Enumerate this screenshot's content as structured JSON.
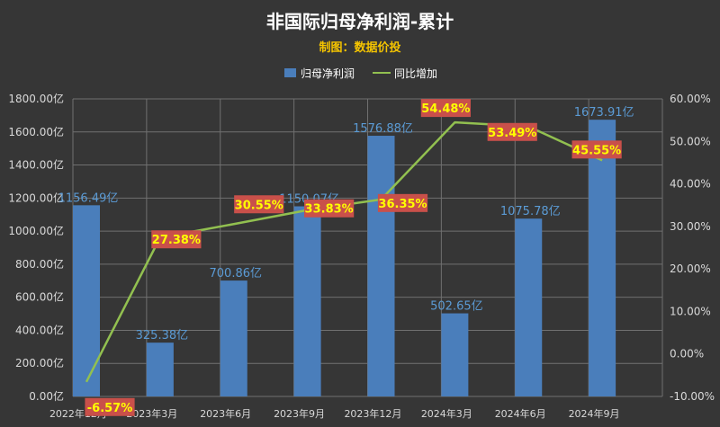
{
  "chart_data": {
    "type": "bar",
    "title": "非国际归母净利润-累计",
    "subtitle": "制图：数据价投",
    "categories": [
      "2022年12月",
      "2023年3月",
      "2023年6月",
      "2023年9月",
      "2023年12月",
      "2024年3月",
      "2024年6月",
      "2024年9月"
    ],
    "series": [
      {
        "name": "归母净利润",
        "type": "bar",
        "axis": "left",
        "color": "#4a7ebb",
        "values": [
          1156.49,
          325.38,
          700.86,
          1150.07,
          1576.88,
          502.65,
          1075.78,
          1673.91
        ],
        "labels": [
          "1156.49亿",
          "325.38亿",
          "700.86亿",
          "1150.07亿",
          "1576.88亿",
          "502.65亿",
          "1075.78亿",
          "1673.91亿"
        ]
      },
      {
        "name": "同比增加",
        "type": "line",
        "axis": "right",
        "color": "#92c050",
        "values": [
          -6.57,
          27.38,
          30.55,
          33.83,
          36.35,
          54.48,
          53.49,
          45.55
        ],
        "labels": [
          "-6.57%",
          "27.38%",
          "30.55%",
          "33.83%",
          "36.35%",
          "54.48%",
          "53.49%",
          "45.55%"
        ]
      }
    ],
    "y_left": {
      "min": 0,
      "max": 1800,
      "step": 200,
      "ticks": [
        "0.00亿",
        "200.00亿",
        "400.00亿",
        "600.00亿",
        "800.00亿",
        "1000.00亿",
        "1200.00亿",
        "1400.00亿",
        "1600.00亿",
        "1800.00亿"
      ]
    },
    "y_right": {
      "min": -10,
      "max": 60,
      "step": 10,
      "ticks": [
        "-10.00%",
        "0.00%",
        "10.00%",
        "20.00%",
        "30.00%",
        "40.00%",
        "50.00%",
        "60.00%"
      ]
    },
    "grid": true,
    "legend_position": "top-center",
    "colors": {
      "background": "#363636",
      "grid": "#707070",
      "label_box": "#c9504a"
    }
  }
}
